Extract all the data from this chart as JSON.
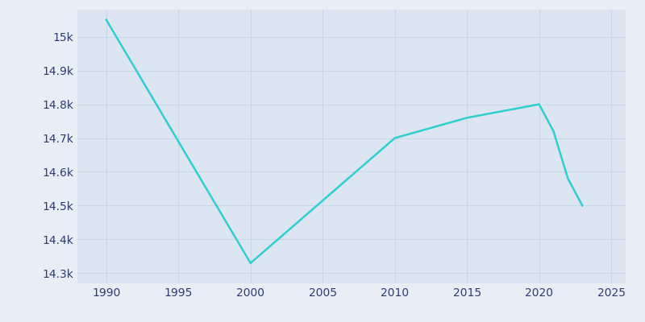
{
  "years": [
    1990,
    2000,
    2010,
    2015,
    2020,
    2021,
    2022,
    2023
  ],
  "population": [
    15050,
    14330,
    14700,
    14760,
    14800,
    14720,
    14580,
    14500
  ],
  "line_color": "#2ecfcf",
  "bg_color": "#e8eef5",
  "plot_bg_color": "#dde6f0",
  "text_color": "#2d3b6e",
  "xlim": [
    1988,
    2026
  ],
  "ylim": [
    14270,
    15080
  ],
  "yticks": [
    14300,
    14400,
    14500,
    14600,
    14700,
    14800,
    14900,
    15000
  ],
  "ytick_labels": [
    "14.3k",
    "14.4k",
    "14.5k",
    "14.6k",
    "14.7k",
    "14.8k",
    "14.9k",
    "15k"
  ],
  "xticks": [
    1990,
    1995,
    2000,
    2005,
    2010,
    2015,
    2020,
    2025
  ],
  "grid_color": "#c8d8e8",
  "line_width": 1.8,
  "figsize": [
    8.0,
    4.0
  ],
  "dpi": 100
}
